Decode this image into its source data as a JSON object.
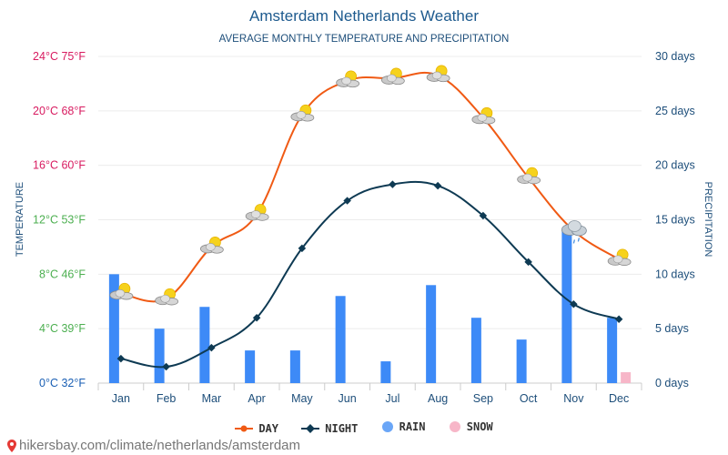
{
  "chart_data": {
    "type": "line+bar",
    "title": "Amsterdam Netherlands Weather",
    "subtitle": "AVERAGE MONTHLY TEMPERATURE AND PRECIPITATION",
    "categories": [
      "Jan",
      "Feb",
      "Mar",
      "Apr",
      "May",
      "Jun",
      "Jul",
      "Aug",
      "Sep",
      "Oct",
      "Nov",
      "Dec"
    ],
    "left_axis": {
      "label": "TEMPERATURE",
      "range_c": [
        0,
        24
      ],
      "ticks": [
        {
          "value": 0,
          "label": "0°C 32°F",
          "color": "#1a5fb4"
        },
        {
          "value": 4,
          "label": "4°C 39°F",
          "color": "#4caf50"
        },
        {
          "value": 8,
          "label": "8°C 46°F",
          "color": "#4caf50"
        },
        {
          "value": 12,
          "label": "12°C 53°F",
          "color": "#4caf50"
        },
        {
          "value": 16,
          "label": "16°C 60°F",
          "color": "#d81b60"
        },
        {
          "value": 20,
          "label": "20°C 68°F",
          "color": "#d81b60"
        },
        {
          "value": 24,
          "label": "24°C 75°F",
          "color": "#d81b60"
        }
      ]
    },
    "right_axis": {
      "label": "PRECIPITATION",
      "range_days": [
        0,
        30
      ],
      "ticks": [
        {
          "value": 0,
          "label": "0 days"
        },
        {
          "value": 5,
          "label": "5 days"
        },
        {
          "value": 10,
          "label": "10 days"
        },
        {
          "value": 15,
          "label": "15 days"
        },
        {
          "value": 20,
          "label": "20 days"
        },
        {
          "value": 25,
          "label": "25 days"
        },
        {
          "value": 30,
          "label": "30 days"
        }
      ]
    },
    "series": [
      {
        "name": "DAY",
        "kind": "line",
        "axis": "left",
        "color": "#f05a14",
        "values": [
          6.6,
          6.2,
          10.0,
          12.4,
          19.7,
          22.2,
          22.4,
          22.6,
          19.5,
          15.1,
          11.2,
          9.1
        ]
      },
      {
        "name": "NIGHT",
        "kind": "line",
        "axis": "left",
        "color": "#0e3a53",
        "values": [
          1.8,
          1.2,
          2.6,
          4.8,
          9.9,
          13.4,
          14.6,
          14.5,
          12.3,
          8.9,
          5.8,
          4.7
        ]
      },
      {
        "name": "RAIN",
        "kind": "bar",
        "axis": "right",
        "color": "#3d8af7",
        "values": [
          10,
          5,
          7,
          3,
          3,
          8,
          2,
          9,
          6,
          4,
          14,
          6
        ]
      },
      {
        "name": "SNOW",
        "kind": "bar",
        "axis": "right",
        "color": "#f7b6c8",
        "values": [
          0,
          0,
          0,
          0,
          0,
          0,
          0,
          0,
          0,
          0,
          0,
          1
        ]
      }
    ],
    "weather_icons": [
      "partly-sunny",
      "partly-sunny",
      "partly-sunny",
      "partly-sunny",
      "partly-sunny",
      "partly-sunny",
      "partly-sunny",
      "partly-sunny",
      "partly-sunny",
      "partly-sunny",
      "rain-cloud",
      "partly-sunny"
    ],
    "legend": [
      "DAY",
      "NIGHT",
      "RAIN",
      "SNOW"
    ],
    "legend_position": "bottom-center"
  },
  "footer": {
    "text": "hikersbay.com/climate/netherlands/amsterdam"
  }
}
